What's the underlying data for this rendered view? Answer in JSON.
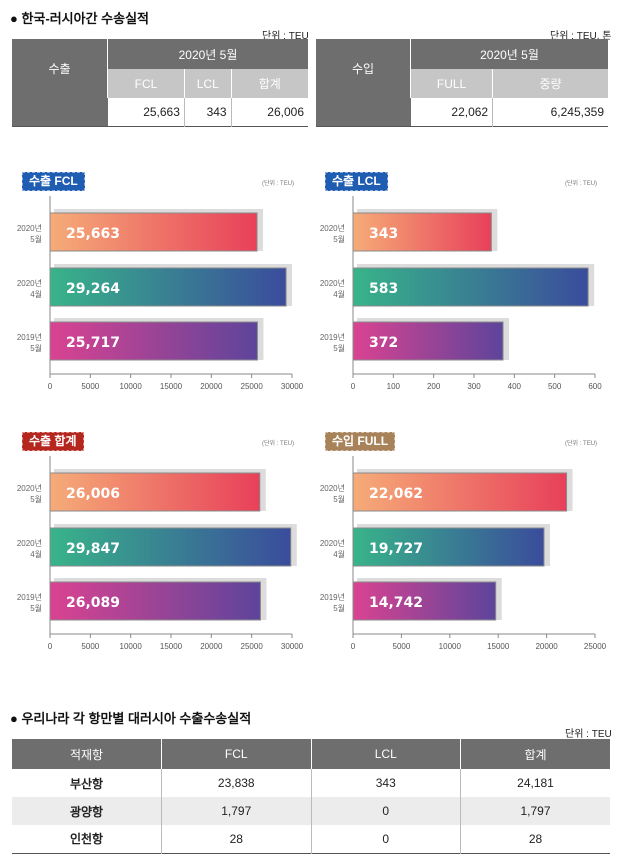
{
  "section1": {
    "title": "● 한국-러시아간 수송실적"
  },
  "export_table": {
    "unit": "단위 : TEU",
    "row_header": "수출",
    "period": "2020년 5월",
    "columns": [
      "FCL",
      "LCL",
      "합계"
    ],
    "values": [
      "25,663",
      "343",
      "26,006"
    ]
  },
  "import_table": {
    "unit": "단위 : TEU, 톤",
    "row_header": "수입",
    "period": "2020년 5월",
    "columns": [
      "FULL",
      "중량"
    ],
    "values": [
      "22,062",
      "6,245,359"
    ]
  },
  "colors": {
    "bar1": [
      "#f5ac78",
      "#e8405a"
    ],
    "bar2": [
      "#38b489",
      "#3a4c9c"
    ],
    "bar3": [
      "#da4391",
      "#5d449b"
    ]
  },
  "chart_data": [
    {
      "type": "bar",
      "title": "수출 FCL",
      "unit": "(단위 : TEU)",
      "badge_color": "#1f5db3",
      "categories": [
        [
          "2020년",
          "5월"
        ],
        [
          "2020년",
          "4월"
        ],
        [
          "2019년",
          "5월"
        ]
      ],
      "values": [
        25663,
        29264,
        25717
      ],
      "labels": [
        "25,663",
        "29,264",
        "25,717"
      ],
      "xlim": [
        0,
        30000
      ],
      "ticks": [
        0,
        5000,
        10000,
        15000,
        20000,
        25000,
        30000
      ]
    },
    {
      "type": "bar",
      "title": "수출 LCL",
      "unit": "(단위 : TEU)",
      "badge_color": "#1f5db3",
      "categories": [
        [
          "2020년",
          "5월"
        ],
        [
          "2020년",
          "4월"
        ],
        [
          "2019년",
          "5월"
        ]
      ],
      "values": [
        343,
        583,
        372
      ],
      "labels": [
        "343",
        "583",
        "372"
      ],
      "xlim": [
        0,
        600
      ],
      "ticks": [
        0,
        100,
        200,
        300,
        400,
        500,
        600
      ]
    },
    {
      "type": "bar",
      "title": "수출 합계",
      "unit": "(단위 : TEU)",
      "badge_color": "#b5261f",
      "categories": [
        [
          "2020년",
          "5월"
        ],
        [
          "2020년",
          "4월"
        ],
        [
          "2019년",
          "5월"
        ]
      ],
      "values": [
        26006,
        29847,
        26089
      ],
      "labels": [
        "26,006",
        "29,847",
        "26,089"
      ],
      "xlim": [
        0,
        30000
      ],
      "ticks": [
        0,
        5000,
        10000,
        15000,
        20000,
        25000,
        30000
      ]
    },
    {
      "type": "bar",
      "title": "수입 FULL",
      "unit": "(단위 : TEU)",
      "badge_color": "#a8835a",
      "categories": [
        [
          "2020년",
          "5월"
        ],
        [
          "2020년",
          "4월"
        ],
        [
          "2019년",
          "5월"
        ]
      ],
      "values": [
        22062,
        19727,
        14742
      ],
      "labels": [
        "22,062",
        "19,727",
        "14,742"
      ],
      "xlim": [
        0,
        25000
      ],
      "ticks": [
        0,
        5000,
        10000,
        15000,
        20000,
        25000
      ]
    }
  ],
  "section2": {
    "title": "● 우리나라 각 항만별 대러시아 수출수송실적",
    "unit": "단위 : TEU",
    "columns": [
      "적재항",
      "FCL",
      "LCL",
      "합계"
    ],
    "rows": [
      [
        "부산항",
        "23,838",
        "343",
        "24,181"
      ],
      [
        "광양항",
        "1,797",
        "0",
        "1,797"
      ],
      [
        "인천항",
        "28",
        "0",
        "28"
      ]
    ]
  }
}
